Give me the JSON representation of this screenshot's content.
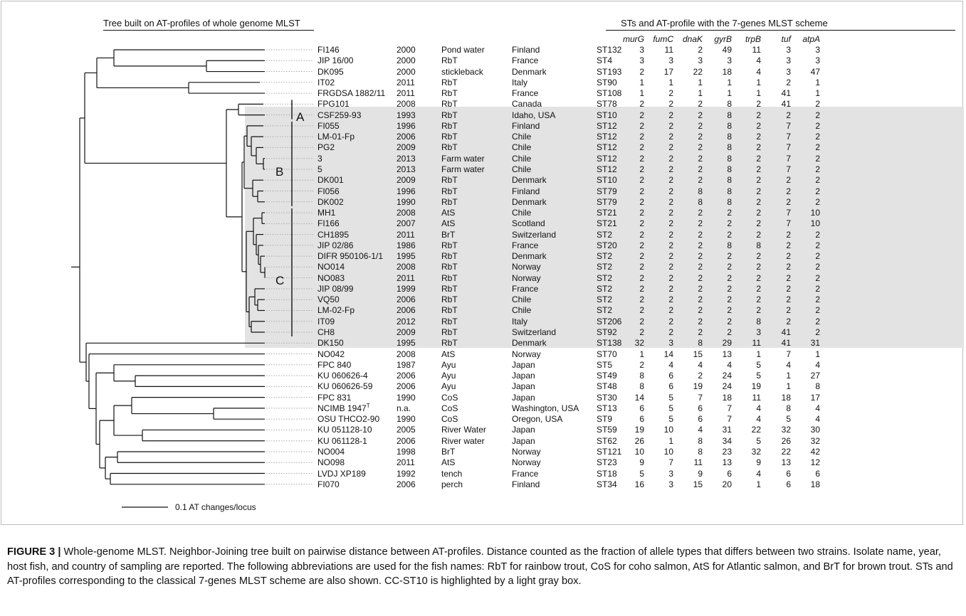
{
  "header_left": "Tree built on AT-profiles of whole genome MLST",
  "header_right": "STs and AT-profile with the 7-genes MLST scheme",
  "genes": [
    "murG",
    "fumC",
    "dnaK",
    "gyrB",
    "trpB",
    "tuf",
    "atpA"
  ],
  "clade_labels": [
    "A",
    "B",
    "C"
  ],
  "scale_label": "0.1   AT changes/locus",
  "isolates": [
    {
      "name": "FI146",
      "year": "2000",
      "host": "Pond water",
      "country": "Finland",
      "st": "ST132",
      "alleles": [
        "3",
        "11",
        "2",
        "49",
        "11",
        "3",
        "3"
      ]
    },
    {
      "name": "JIP 16/00",
      "year": "2000",
      "host": "RbT",
      "country": "France",
      "st": "ST4",
      "alleles": [
        "3",
        "3",
        "3",
        "3",
        "4",
        "3",
        "3"
      ]
    },
    {
      "name": "DK095",
      "year": "2000",
      "host": "stickleback",
      "country": "Denmark",
      "st": "ST193",
      "alleles": [
        "2",
        "17",
        "22",
        "18",
        "4",
        "3",
        "47"
      ]
    },
    {
      "name": "IT02",
      "year": "2011",
      "host": "RbT",
      "country": "Italy",
      "st": "ST90",
      "alleles": [
        "1",
        "1",
        "1",
        "1",
        "1",
        "2",
        "1"
      ]
    },
    {
      "name": "FRGDSA 1882/11",
      "year": "2011",
      "host": "RbT",
      "country": "France",
      "st": "ST108",
      "alleles": [
        "1",
        "2",
        "1",
        "1",
        "1",
        "41",
        "1"
      ]
    },
    {
      "name": "FPG101",
      "year": "2008",
      "host": "RbT",
      "country": "Canada",
      "st": "ST78",
      "alleles": [
        "2",
        "2",
        "2",
        "8",
        "2",
        "41",
        "2"
      ]
    },
    {
      "name": "CSF259-93",
      "year": "1993",
      "host": "RbT",
      "country": "Idaho, USA",
      "st": "ST10",
      "alleles": [
        "2",
        "2",
        "2",
        "8",
        "2",
        "2",
        "2"
      ]
    },
    {
      "name": "FI055",
      "year": "1996",
      "host": "RbT",
      "country": "Finland",
      "st": "ST12",
      "alleles": [
        "2",
        "2",
        "2",
        "8",
        "2",
        "7",
        "2"
      ]
    },
    {
      "name": "LM-01-Fp",
      "year": "2006",
      "host": "RbT",
      "country": "Chile",
      "st": "ST12",
      "alleles": [
        "2",
        "2",
        "2",
        "8",
        "2",
        "7",
        "2"
      ]
    },
    {
      "name": "PG2",
      "year": "2009",
      "host": "RbT",
      "country": "Chile",
      "st": "ST12",
      "alleles": [
        "2",
        "2",
        "2",
        "8",
        "2",
        "7",
        "2"
      ]
    },
    {
      "name": "3",
      "year": "2013",
      "host": "Farm water",
      "country": "Chile",
      "st": "ST12",
      "alleles": [
        "2",
        "2",
        "2",
        "8",
        "2",
        "7",
        "2"
      ]
    },
    {
      "name": "5",
      "year": "2013",
      "host": "Farm water",
      "country": "Chile",
      "st": "ST12",
      "alleles": [
        "2",
        "2",
        "2",
        "8",
        "2",
        "7",
        "2"
      ]
    },
    {
      "name": "DK001",
      "year": "2009",
      "host": "RbT",
      "country": "Denmark",
      "st": "ST10",
      "alleles": [
        "2",
        "2",
        "2",
        "8",
        "2",
        "2",
        "2"
      ]
    },
    {
      "name": "FI056",
      "year": "1996",
      "host": "RbT",
      "country": "Finland",
      "st": "ST79",
      "alleles": [
        "2",
        "2",
        "8",
        "8",
        "2",
        "2",
        "2"
      ]
    },
    {
      "name": "DK002",
      "year": "1990",
      "host": "RbT",
      "country": "Denmark",
      "st": "ST79",
      "alleles": [
        "2",
        "2",
        "8",
        "8",
        "2",
        "2",
        "2"
      ]
    },
    {
      "name": "MH1",
      "year": "2008",
      "host": "AtS",
      "country": "Chile",
      "st": "ST21",
      "alleles": [
        "2",
        "2",
        "2",
        "2",
        "2",
        "7",
        "10"
      ]
    },
    {
      "name": "FI166",
      "year": "2007",
      "host": "AtS",
      "country": "Scotland",
      "st": "ST21",
      "alleles": [
        "2",
        "2",
        "2",
        "2",
        "2",
        "7",
        "10"
      ]
    },
    {
      "name": "CH1895",
      "year": "2011",
      "host": "BrT",
      "country": "Switzerland",
      "st": "ST2",
      "alleles": [
        "2",
        "2",
        "2",
        "2",
        "2",
        "2",
        "2"
      ]
    },
    {
      "name": "JIP 02/86",
      "year": "1986",
      "host": "RbT",
      "country": "France",
      "st": "ST20",
      "alleles": [
        "2",
        "2",
        "2",
        "8",
        "8",
        "2",
        "2"
      ]
    },
    {
      "name": "DIFR 950106-1/1",
      "year": "1995",
      "host": "RbT",
      "country": "Denmark",
      "st": "ST2",
      "alleles": [
        "2",
        "2",
        "2",
        "2",
        "2",
        "2",
        "2"
      ]
    },
    {
      "name": "NO014",
      "year": "2008",
      "host": "RbT",
      "country": "Norway",
      "st": "ST2",
      "alleles": [
        "2",
        "2",
        "2",
        "2",
        "2",
        "2",
        "2"
      ]
    },
    {
      "name": "NO083",
      "year": "2011",
      "host": "RbT",
      "country": "Norway",
      "st": "ST2",
      "alleles": [
        "2",
        "2",
        "2",
        "2",
        "2",
        "2",
        "2"
      ]
    },
    {
      "name": "JIP 08/99",
      "year": "1999",
      "host": "RbT",
      "country": "France",
      "st": "ST2",
      "alleles": [
        "2",
        "2",
        "2",
        "2",
        "2",
        "2",
        "2"
      ]
    },
    {
      "name": "VQ50",
      "year": "2006",
      "host": "RbT",
      "country": "Chile",
      "st": "ST2",
      "alleles": [
        "2",
        "2",
        "2",
        "2",
        "2",
        "2",
        "2"
      ]
    },
    {
      "name": "LM-02-Fp",
      "year": "2006",
      "host": "RbT",
      "country": "Chile",
      "st": "ST2",
      "alleles": [
        "2",
        "2",
        "2",
        "2",
        "2",
        "2",
        "2"
      ]
    },
    {
      "name": "IT09",
      "year": "2012",
      "host": "RbT",
      "country": "Italy",
      "st": "ST206",
      "alleles": [
        "2",
        "2",
        "2",
        "2",
        "8",
        "2",
        "2"
      ]
    },
    {
      "name": "CH8",
      "year": "2009",
      "host": "RbT",
      "country": "Switzerland",
      "st": "ST92",
      "alleles": [
        "2",
        "2",
        "2",
        "2",
        "3",
        "41",
        "2"
      ]
    },
    {
      "name": "DK150",
      "year": "1995",
      "host": "RbT",
      "country": "Denmark",
      "st": "ST138",
      "alleles": [
        "32",
        "3",
        "8",
        "29",
        "11",
        "41",
        "31"
      ]
    },
    {
      "name": "NO042",
      "year": "2008",
      "host": "AtS",
      "country": "Norway",
      "st": "ST70",
      "alleles": [
        "1",
        "14",
        "15",
        "13",
        "1",
        "7",
        "1"
      ]
    },
    {
      "name": "FPC 840",
      "year": "1987",
      "host": "Ayu",
      "country": "Japan",
      "st": "ST5",
      "alleles": [
        "2",
        "4",
        "4",
        "4",
        "5",
        "4",
        "4"
      ]
    },
    {
      "name": "KU 060626-4",
      "year": "2006",
      "host": "Ayu",
      "country": "Japan",
      "st": "ST49",
      "alleles": [
        "8",
        "6",
        "2",
        "24",
        "5",
        "1",
        "27"
      ]
    },
    {
      "name": "KU 060626-59",
      "year": "2006",
      "host": "Ayu",
      "country": "Japan",
      "st": "ST48",
      "alleles": [
        "8",
        "6",
        "19",
        "24",
        "19",
        "1",
        "8"
      ]
    },
    {
      "name": "FPC 831",
      "year": "1990",
      "host": "CoS",
      "country": "Japan",
      "st": "ST30",
      "alleles": [
        "14",
        "5",
        "7",
        "18",
        "11",
        "18",
        "17"
      ]
    },
    {
      "name": "NCIMB 1947",
      "name_sup": "T",
      "year": "n.a.",
      "host": "CoS",
      "country": "Washington, USA",
      "st": "ST13",
      "alleles": [
        "6",
        "5",
        "6",
        "7",
        "4",
        "8",
        "4"
      ]
    },
    {
      "name": "OSU THCO2-90",
      "year": "1990",
      "host": "CoS",
      "country": "Oregon, USA",
      "st": "ST9",
      "alleles": [
        "6",
        "5",
        "6",
        "7",
        "4",
        "5",
        "4"
      ]
    },
    {
      "name": "KU 051128-10",
      "year": "2005",
      "host": "River Water",
      "country": "Japan",
      "st": "ST59",
      "alleles": [
        "19",
        "10",
        "4",
        "31",
        "22",
        "32",
        "30"
      ]
    },
    {
      "name": "KU 061128-1",
      "year": "2006",
      "host": "River water",
      "country": "Japan",
      "st": "ST62",
      "alleles": [
        "26",
        "1",
        "8",
        "34",
        "5",
        "26",
        "32"
      ]
    },
    {
      "name": "NO004",
      "year": "1998",
      "host": "BrT",
      "country": "Norway",
      "st": "ST121",
      "alleles": [
        "10",
        "10",
        "8",
        "23",
        "32",
        "22",
        "42"
      ]
    },
    {
      "name": "NO098",
      "year": "2011",
      "host": "AtS",
      "country": "Norway",
      "st": "ST23",
      "alleles": [
        "9",
        "7",
        "11",
        "13",
        "9",
        "13",
        "12"
      ]
    },
    {
      "name": "LVDJ XP189",
      "year": "1992",
      "host": "tench",
      "country": "France",
      "st": "ST18",
      "alleles": [
        "5",
        "3",
        "9",
        "6",
        "4",
        "6",
        "6"
      ]
    },
    {
      "name": "FI070",
      "year": "2006",
      "host": "perch",
      "country": "Finland",
      "st": "ST34",
      "alleles": [
        "16",
        "3",
        "15",
        "20",
        "1",
        "6",
        "18"
      ]
    }
  ],
  "caption": {
    "label": "FIGURE 3 |",
    "text": " Whole-genome MLST. Neighbor-Joining tree built on pairwise distance between AT-profiles. Distance counted as the fraction of allele types that differs between two strains. Isolate name, year, host fish, and country of sampling are reported. The following abbreviations are used for the fish names: RbT for rainbow trout, CoS for coho salmon, AtS for Atlantic salmon, and BrT for brown trout. STs and AT-profiles corresponding to the classical 7-genes MLST scheme are also shown. CC-ST10 is highlighted by a light gray box."
  }
}
